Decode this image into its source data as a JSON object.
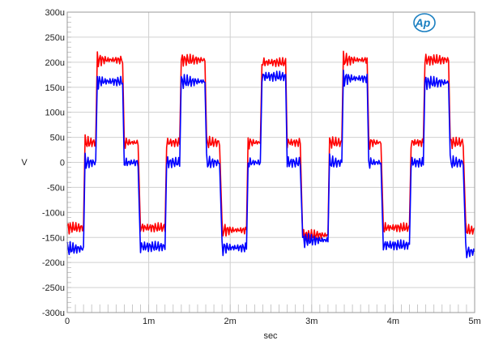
{
  "chart_data": {
    "type": "line",
    "title": "",
    "xlabel": "sec",
    "ylabel": "V",
    "xlim": [
      0,
      0.005
    ],
    "ylim": [
      -0.0003,
      0.0003
    ],
    "grid": true,
    "x_ticks": [
      {
        "value": 0,
        "label": "0"
      },
      {
        "value": 0.001,
        "label": "1m"
      },
      {
        "value": 0.002,
        "label": "2m"
      },
      {
        "value": 0.003,
        "label": "3m"
      },
      {
        "value": 0.004,
        "label": "4m"
      },
      {
        "value": 0.005,
        "label": "5m"
      }
    ],
    "y_ticks": [
      {
        "value": 0.0003,
        "label": "300u"
      },
      {
        "value": 0.00025,
        "label": "250u"
      },
      {
        "value": 0.0002,
        "label": "200u"
      },
      {
        "value": 0.00015,
        "label": "150u"
      },
      {
        "value": 0.0001,
        "label": "100u"
      },
      {
        "value": 5e-05,
        "label": "50u"
      },
      {
        "value": 0,
        "label": "0"
      },
      {
        "value": -5e-05,
        "label": "-50u"
      },
      {
        "value": -0.0001,
        "label": "-100u"
      },
      {
        "value": -0.00015,
        "label": "-150u"
      },
      {
        "value": -0.0002,
        "label": "-200u"
      },
      {
        "value": -0.00025,
        "label": "-250u"
      },
      {
        "value": -0.0003,
        "label": "-300u"
      }
    ],
    "series_note_units": "segments: [start_ms, end_ms, level_uV]",
    "series": [
      {
        "color": "#ff0000",
        "segments": [
          [
            0,
            0.2,
            -130
          ],
          [
            0.22,
            0.35,
            40
          ],
          [
            0.37,
            0.68,
            205
          ],
          [
            0.7,
            0.87,
            40
          ],
          [
            0.9,
            1.2,
            -130
          ],
          [
            1.22,
            1.38,
            40
          ],
          [
            1.4,
            1.69,
            205
          ],
          [
            1.71,
            1.87,
            40
          ],
          [
            1.9,
            2.2,
            -135
          ],
          [
            2.22,
            2.37,
            40
          ],
          [
            2.39,
            2.68,
            200
          ],
          [
            2.7,
            2.86,
            40
          ],
          [
            2.89,
            3.2,
            -145
          ],
          [
            3.22,
            3.37,
            40
          ],
          [
            3.39,
            3.68,
            205
          ],
          [
            3.7,
            3.85,
            40
          ],
          [
            3.88,
            4.2,
            -130
          ],
          [
            4.22,
            4.37,
            40
          ],
          [
            4.39,
            4.68,
            205
          ],
          [
            4.7,
            4.86,
            40
          ],
          [
            4.89,
            5.0,
            -135
          ]
        ]
      },
      {
        "color": "#0000ff",
        "segments": [
          [
            0,
            0.2,
            -172
          ],
          [
            0.22,
            0.35,
            0
          ],
          [
            0.37,
            0.68,
            162
          ],
          [
            0.7,
            0.87,
            0
          ],
          [
            0.9,
            1.2,
            -168
          ],
          [
            1.22,
            1.38,
            0
          ],
          [
            1.4,
            1.69,
            162
          ],
          [
            1.71,
            1.87,
            0
          ],
          [
            1.9,
            2.2,
            -170
          ],
          [
            2.22,
            2.37,
            0
          ],
          [
            2.39,
            2.68,
            172
          ],
          [
            2.7,
            2.86,
            0
          ],
          [
            2.89,
            3.2,
            -155
          ],
          [
            3.22,
            3.37,
            0
          ],
          [
            3.39,
            3.68,
            168
          ],
          [
            3.7,
            3.85,
            0
          ],
          [
            3.88,
            4.2,
            -165
          ],
          [
            4.22,
            4.37,
            0
          ],
          [
            4.39,
            4.68,
            160
          ],
          [
            4.7,
            4.86,
            0
          ],
          [
            4.89,
            5.0,
            -178
          ]
        ]
      }
    ]
  },
  "logo": {
    "text": "Ap",
    "color": "#1a7fc1"
  }
}
